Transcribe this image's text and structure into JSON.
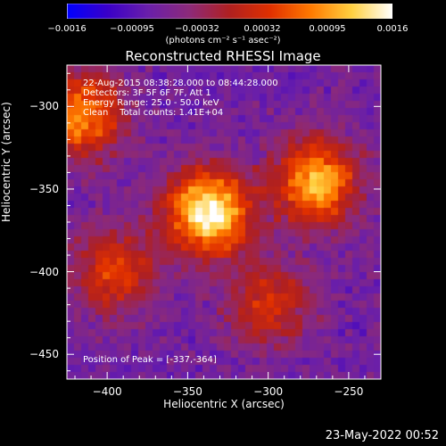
{
  "colorbar": {
    "ticks": [
      "−0.0016",
      "−0.00095",
      "−0.00032",
      "0.00032",
      "0.00095",
      "0.0016"
    ],
    "units": "(photons cm⁻² s⁻¹ asec⁻²)",
    "min": -0.0016,
    "max": 0.0016,
    "colors": [
      "#0000ff",
      "#3a00c8",
      "#6a1faa",
      "#8c2a7a",
      "#b02020",
      "#e03000",
      "#ff7a00",
      "#ffd040",
      "#ffffff"
    ]
  },
  "annotation": {
    "line1": "22-Aug-2015 08:38:28.000 to 08:44:28.000",
    "line2": "Detectors: 3F 5F 6F 7F, Att 1",
    "line3": "Energy Range: 25.0 - 50.0 keV",
    "line4": "Clean    Total counts: 1.41E+04",
    "peak": "Position of Peak = [-337,-364]"
  },
  "timestamp": "23-May-2022 00:52",
  "chart_data": {
    "type": "heatmap",
    "title": "Reconstructed RHESSI Image",
    "xlabel": "Heliocentric X (arcsec)",
    "ylabel": "Heliocentric Y (arcsec)",
    "xlim": [
      -425,
      -230
    ],
    "ylim": [
      -465,
      -275
    ],
    "xticks": [
      -400,
      -350,
      -300,
      -250
    ],
    "xtick_labels": [
      "−400",
      "−350",
      "−300",
      "−250"
    ],
    "yticks": [
      -300,
      -350,
      -400,
      -450
    ],
    "ytick_labels": [
      "−300",
      "−350",
      "−400",
      "−450"
    ],
    "peak_position": [
      -337,
      -364
    ],
    "sources": [
      {
        "x": -337,
        "y": -364,
        "intensity": 1.0
      },
      {
        "x": -270,
        "y": -346,
        "intensity": 0.8
      },
      {
        "x": -415,
        "y": -305,
        "intensity": 0.7
      },
      {
        "x": -395,
        "y": -400,
        "intensity": 0.5
      },
      {
        "x": -300,
        "y": -420,
        "intensity": 0.45
      }
    ]
  }
}
